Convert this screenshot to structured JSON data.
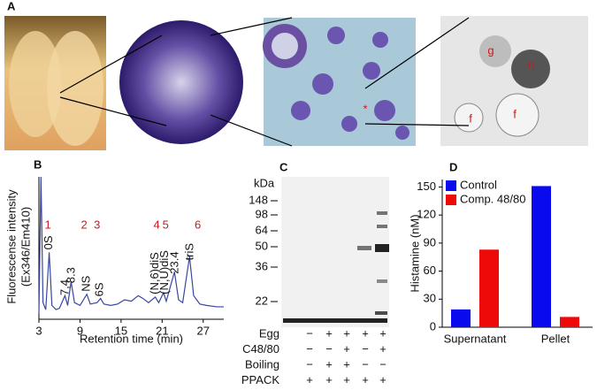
{
  "panel_labels": [
    "A",
    "B",
    "C",
    "D"
  ],
  "panel_a": {
    "labels": [
      "g",
      "n",
      "f",
      "f",
      "*"
    ]
  },
  "chart_data": [
    {
      "type": "line",
      "xlabel": "Retention time (min)",
      "ylabel": [
        "Fluorescense intensity",
        "(Ex346/Em410)"
      ],
      "xlim": [
        3,
        30
      ],
      "ylim": [
        0,
        100
      ],
      "xticks": [
        3,
        9,
        15,
        21,
        27
      ],
      "color": "#3a46a0",
      "x": [
        3,
        3.3,
        3.6,
        4,
        4.5,
        4.9,
        5.5,
        6,
        6.8,
        7.2,
        7.7,
        8.2,
        9,
        10,
        10.5,
        11.5,
        12,
        12.5,
        13.5,
        14.5,
        15.5,
        16.5,
        17.5,
        18.2,
        19,
        20,
        20.5,
        21.2,
        21.6,
        22.8,
        23.4,
        24,
        25,
        25.6,
        26.5,
        27.5,
        29,
        30
      ],
      "values": [
        2,
        100,
        10,
        5,
        46,
        8,
        5,
        6,
        15,
        8,
        25,
        10,
        8,
        16,
        9,
        10,
        13,
        9,
        8,
        9,
        12,
        11,
        15,
        13,
        10,
        14,
        10,
        17,
        11,
        32,
        12,
        10,
        43,
        15,
        9,
        8,
        7,
        7
      ],
      "peak_numbers": [
        {
          "text": "1",
          "x": 4.3
        },
        {
          "text": "2",
          "x": 9.6
        },
        {
          "text": "3",
          "x": 11.5
        },
        {
          "text": "4",
          "x": 20.2
        },
        {
          "text": "5",
          "x": 21.5
        },
        {
          "text": "6",
          "x": 26.2
        }
      ],
      "peak_labels": [
        {
          "text": "0S",
          "x": 4.5
        },
        {
          "text": "7,4",
          "x": 6.9
        },
        {
          "text": "8.3",
          "x": 7.8
        },
        {
          "text": "NS",
          "x": 10
        },
        {
          "text": "6S",
          "x": 11.9
        },
        {
          "text": "(N,6)diS",
          "x": 20
        },
        {
          "text": "(N,U)diS",
          "x": 21.4
        },
        {
          "text": "23.4",
          "x": 22.9
        },
        {
          "text": "triS",
          "x": 25.1
        }
      ]
    },
    {
      "type": "bar",
      "ylabel": "Histamine (nM)",
      "categories": [
        "Supernatant",
        "Pellet"
      ],
      "series": [
        {
          "name": "Control",
          "color": "#0a0aef",
          "values": [
            19,
            151
          ]
        },
        {
          "name": "Comp. 48/80",
          "color": "#ef0a0a",
          "values": [
            83,
            11
          ]
        }
      ],
      "ylim": [
        0,
        158
      ],
      "yticks": [
        0,
        30,
        60,
        90,
        120,
        150
      ],
      "legend": "top-left"
    }
  ],
  "panel_c": {
    "unit": "kDa",
    "markers": [
      148,
      98,
      64,
      50,
      36,
      22
    ],
    "rows": [
      {
        "label": "Egg",
        "signs": [
          "−",
          "+",
          "+",
          "+",
          "+"
        ]
      },
      {
        "label": "C48/80",
        "signs": [
          "−",
          "−",
          "+",
          "−",
          "+"
        ]
      },
      {
        "label": "Boiling",
        "signs": [
          "−",
          "+",
          "+",
          "−",
          "−"
        ]
      },
      {
        "label": "PPACK",
        "signs": [
          "+",
          "+",
          "+",
          "+",
          "+"
        ]
      }
    ]
  }
}
